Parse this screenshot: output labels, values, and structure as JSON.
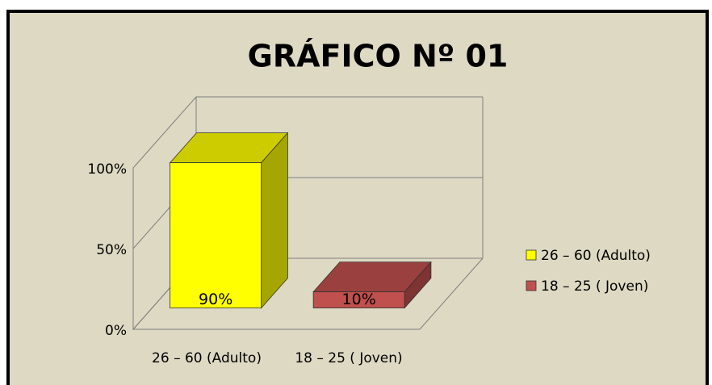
{
  "chart_data": {
    "type": "bar3d",
    "title": "GRÁFICO Nº 01",
    "categories": [
      "26 – 60 (Adulto)",
      "18 – 25 ( Joven)"
    ],
    "values": [
      90,
      10
    ],
    "value_labels": [
      "90%",
      "10%"
    ],
    "colors": [
      "#ffff00",
      "#c0504d"
    ],
    "ylim": [
      0,
      100
    ],
    "yticks": [
      {
        "value": 0,
        "label": "0%"
      },
      {
        "value": 50,
        "label": "50%"
      },
      {
        "value": 100,
        "label": "100%"
      }
    ],
    "grid": true,
    "legend": "right"
  }
}
